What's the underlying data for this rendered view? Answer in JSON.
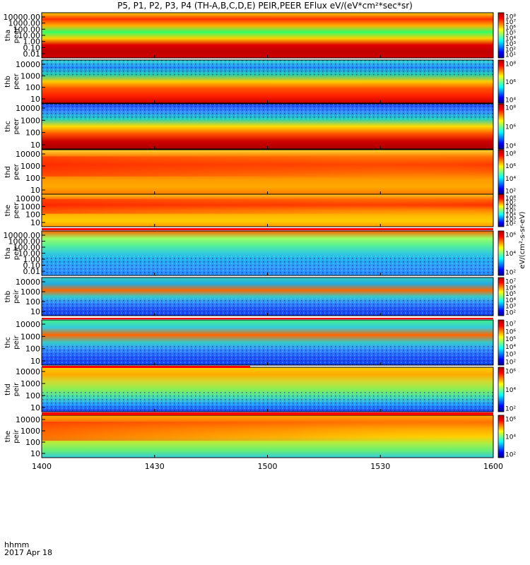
{
  "title": "P5, P1, P2, P3, P4 (TH-A,B,C,D,E) PEIR,PEER EFlux eV/(eV*cm²*sec*sr)",
  "footer": {
    "time_unit": "hhmm",
    "date": "2017 Apr 18"
  },
  "chart_data": {
    "type": "heatmap",
    "x_axis": {
      "tick_labels": [
        "1400",
        "1430",
        "1500",
        "1530",
        "1600"
      ],
      "range": [
        "14:00",
        "16:00"
      ]
    },
    "colorbar_unit": "eV/(cm²-s-sr-eV)",
    "panels": [
      {
        "probe": "tha",
        "species": "peer",
        "yticks": [
          "10000.00",
          "1000.00",
          "100.00",
          "10.00",
          "1.00",
          "0.10",
          "0.01"
        ],
        "cbar_ticks": [
          "10⁸",
          "10⁷",
          "10⁶",
          "10⁵",
          "10⁴",
          "10³",
          "10²",
          "10¹"
        ]
      },
      {
        "probe": "thb",
        "species": "peer",
        "yticks": [
          "10000",
          "1000",
          "100",
          "10"
        ],
        "cbar_ticks": [
          "10⁸",
          "10⁶",
          "10⁴"
        ]
      },
      {
        "probe": "thc",
        "species": "peer",
        "yticks": [
          "10000",
          "1000",
          "100",
          "10"
        ],
        "cbar_ticks": [
          "10⁸",
          "10⁶",
          "10⁴"
        ]
      },
      {
        "probe": "thd",
        "species": "peer",
        "yticks": [
          "10000",
          "1000",
          "100",
          "10"
        ],
        "cbar_ticks": [
          "10⁸",
          "10⁶",
          "10⁴",
          "10²"
        ]
      },
      {
        "probe": "the",
        "species": "peer",
        "yticks": [
          "10000",
          "1000",
          "100",
          "10"
        ],
        "cbar_ticks": [
          "10⁸",
          "10⁷",
          "10⁶",
          "10⁵",
          "10⁴",
          "10³",
          "10²"
        ]
      },
      {
        "probe": "tha",
        "species": "peir",
        "yticks": [
          "10000.00",
          "1000.00",
          "100.00",
          "10.00",
          "1.00",
          "0.10",
          "0.01"
        ],
        "cbar_ticks": [
          "10⁶",
          "10⁴",
          "10²"
        ]
      },
      {
        "probe": "thb",
        "species": "peir",
        "yticks": [
          "10000",
          "1000",
          "100",
          "10"
        ],
        "cbar_ticks": [
          "10⁷",
          "10⁶",
          "10⁵",
          "10⁴",
          "10³",
          "10²"
        ]
      },
      {
        "probe": "thc",
        "species": "peir",
        "yticks": [
          "10000",
          "1000",
          "100",
          "10"
        ],
        "cbar_ticks": [
          "10⁷",
          "10⁶",
          "10⁵",
          "10⁴",
          "10³",
          "10²"
        ]
      },
      {
        "probe": "thd",
        "species": "peir",
        "yticks": [
          "10000",
          "1000",
          "100",
          "10"
        ],
        "cbar_ticks": [
          "10⁶",
          "10⁴",
          "10²"
        ]
      },
      {
        "probe": "the",
        "species": "peir",
        "yticks": [
          "10000",
          "1000",
          "100",
          "10"
        ],
        "cbar_ticks": [
          "10⁶",
          "10⁴",
          "10²"
        ]
      }
    ]
  }
}
